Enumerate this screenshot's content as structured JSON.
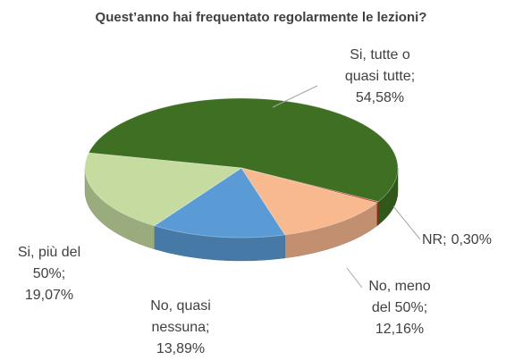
{
  "chart_data": {
    "type": "pie3d",
    "title": "Quest’anno hai frequentato regolarmente  le lezioni?",
    "categories": [
      "Si, tutte o quasi tutte",
      "NR",
      "No, meno del 50%",
      "No, quasi nessuna",
      "Si, più del 50%"
    ],
    "values": [
      54.58,
      0.3,
      12.16,
      13.89,
      19.07
    ],
    "value_labels": [
      "54,58%",
      "0,30%",
      "12,16%",
      "13,89%",
      "19,07%"
    ],
    "label_separator": ";",
    "colors": [
      "#3f6f22",
      "#c0392b",
      "#f9b98f",
      "#5b9bd5",
      "#c5dba0"
    ]
  }
}
